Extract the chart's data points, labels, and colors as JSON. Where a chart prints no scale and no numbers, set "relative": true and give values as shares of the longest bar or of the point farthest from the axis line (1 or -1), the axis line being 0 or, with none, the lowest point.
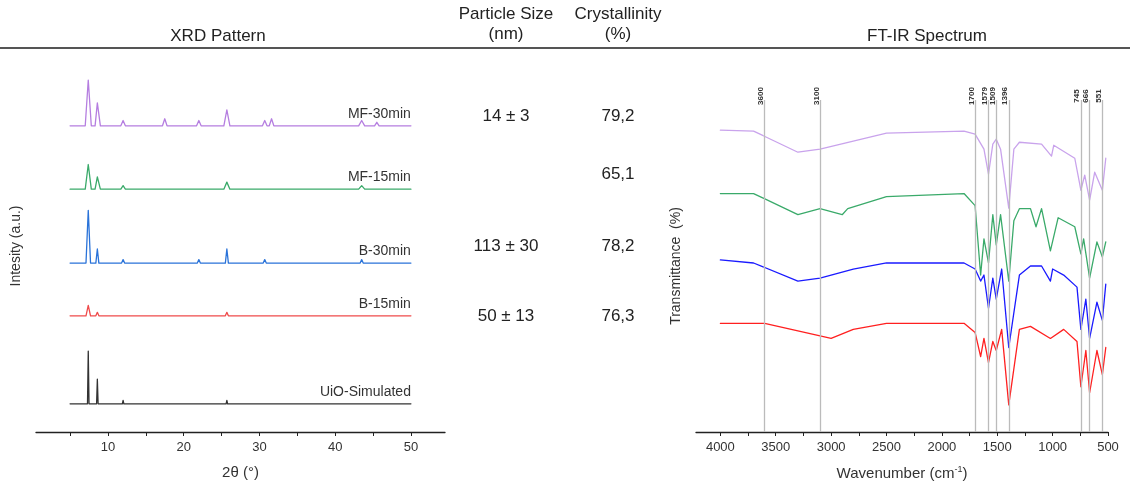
{
  "chart_data": [
    {
      "type": "line",
      "title": "XRD Pattern",
      "xlabel": "2θ (°)",
      "ylabel": "Intesity (a.u.)",
      "relative": true,
      "xlim": [
        0.5,
        54.5
      ],
      "xticks": [
        {
          "value": 5,
          "label": null
        },
        10,
        {
          "value": 15,
          "label": null
        },
        20,
        {
          "value": 25,
          "label": null
        },
        30,
        {
          "value": 35,
          "label": null
        },
        40,
        {
          "value": 45,
          "label": null
        },
        50
      ],
      "series": [
        {
          "name": "MF-30min",
          "color": "#b57ee0",
          "x": [
            5,
            7.0,
            7.4,
            7.8,
            8.3,
            8.6,
            9.0,
            11.7,
            12,
            12.3,
            17.2,
            17.5,
            17.8,
            21.7,
            22,
            22.3,
            25.3,
            25.7,
            26.1,
            30.4,
            30.7,
            31.0,
            31.3,
            31.6,
            31.9,
            43.1,
            43.5,
            43.9,
            45.2,
            45.5,
            45.8,
            50
          ],
          "values": [
            0.87,
            0.87,
            1.0,
            0.87,
            0.87,
            0.935,
            0.87,
            0.87,
            0.885,
            0.87,
            0.87,
            0.89,
            0.87,
            0.87,
            0.885,
            0.87,
            0.87,
            0.915,
            0.87,
            0.87,
            0.885,
            0.87,
            0.87,
            0.89,
            0.87,
            0.87,
            0.885,
            0.87,
            0.87,
            0.88,
            0.87,
            0.87
          ]
        },
        {
          "name": "MF-15min",
          "color": "#3aaa6a",
          "x": [
            5,
            7.0,
            7.4,
            7.8,
            8.3,
            8.6,
            9.0,
            11.7,
            12,
            12.3,
            25.3,
            25.7,
            26.1,
            43.1,
            43.5,
            43.9,
            50
          ],
          "values": [
            0.69,
            0.69,
            0.76,
            0.69,
            0.69,
            0.725,
            0.69,
            0.69,
            0.7,
            0.69,
            0.69,
            0.71,
            0.69,
            0.69,
            0.7,
            0.69,
            0.69
          ]
        },
        {
          "name": "B-30min",
          "color": "#2a73d9",
          "x": [
            5,
            7.1,
            7.4,
            7.7,
            8.4,
            8.6,
            8.8,
            11.8,
            12,
            12.2,
            21.8,
            22,
            22.2,
            25.5,
            25.7,
            25.9,
            30.5,
            30.7,
            30.9,
            43.3,
            43.5,
            43.7,
            50
          ],
          "values": [
            0.48,
            0.48,
            0.63,
            0.48,
            0.48,
            0.52,
            0.48,
            0.48,
            0.49,
            0.48,
            0.48,
            0.49,
            0.48,
            0.48,
            0.52,
            0.48,
            0.48,
            0.49,
            0.48,
            0.48,
            0.49,
            0.48,
            0.48
          ]
        },
        {
          "name": "B-15min",
          "color": "#ef4b4b",
          "x": [
            5,
            7.1,
            7.4,
            7.7,
            8.4,
            8.6,
            8.8,
            25.5,
            25.7,
            25.9,
            50
          ],
          "values": [
            0.33,
            0.33,
            0.36,
            0.33,
            0.33,
            0.34,
            0.33,
            0.33,
            0.34,
            0.33,
            0.33
          ]
        },
        {
          "name": "UiO-Simulated",
          "color": "#333333",
          "x": [
            5,
            7.3,
            7.4,
            7.5,
            8.5,
            8.6,
            8.7,
            11.9,
            12,
            12.1,
            25.6,
            25.7,
            25.8,
            50
          ],
          "values": [
            0.08,
            0.08,
            0.23,
            0.08,
            0.08,
            0.15,
            0.08,
            0.08,
            0.09,
            0.08,
            0.08,
            0.09,
            0.08,
            0.08
          ]
        }
      ]
    },
    {
      "type": "other",
      "categories": [
        "Particle Size\n(nm)",
        "Crystallinity\n(%)"
      ],
      "cell_labels": [
        [
          "14 ± 3",
          "79,2"
        ],
        [
          null,
          "65,1"
        ],
        [
          "113 ± 30",
          "78,2"
        ],
        [
          "50 ± 13",
          "76,3"
        ]
      ]
    },
    {
      "type": "line",
      "title": "FT-IR Spectrum",
      "xlabel": "Wavenumber (cm$^{-1}$)",
      "ylabel": "Transmittance  (%)",
      "relative": true,
      "xlim": [
        4220,
        500
      ],
      "xticks": [
        4000,
        {
          "value": 3750,
          "label": null
        },
        3500,
        {
          "value": 3250,
          "label": null
        },
        3000,
        {
          "value": 2750,
          "label": null
        },
        2500,
        {
          "value": 2250,
          "label": null
        },
        2000,
        {
          "value": 1750,
          "label": null
        },
        1500,
        {
          "value": 1250,
          "label": null
        },
        1000,
        {
          "value": 750,
          "label": null
        },
        500
      ],
      "ref_lines": [
        {
          "axis": "x",
          "value": 3600,
          "label": "3600",
          "color": "#bbbbbb"
        },
        {
          "axis": "x",
          "value": 3100,
          "label": "3100",
          "color": "#bbbbbb"
        },
        {
          "axis": "x",
          "value": 1700,
          "label": "1700",
          "color": "#bbbbbb"
        },
        {
          "axis": "x",
          "value": 1579,
          "label": "1579",
          "color": "#bbbbbb"
        },
        {
          "axis": "x",
          "value": 1509,
          "label": "1509",
          "color": "#bbbbbb"
        },
        {
          "axis": "x",
          "value": 1396,
          "label": "1396",
          "color": "#bbbbbb"
        },
        {
          "axis": "x",
          "value": 745,
          "label": "745",
          "color": "#bbbbbb"
        },
        {
          "axis": "x",
          "value": 666,
          "label": "666",
          "color": "#bbbbbb"
        },
        {
          "axis": "x",
          "value": 551,
          "label": "551",
          "color": "#bbbbbb"
        }
      ],
      "series": [
        {
          "color": "#c9a3ec",
          "x": [
            4000,
            3700,
            3300,
            3100,
            2800,
            2500,
            1800,
            1700,
            1620,
            1579,
            1540,
            1509,
            1470,
            1396,
            1350,
            1300,
            1100,
            1010,
            990,
            800,
            745,
            710,
            666,
            620,
            551,
            520
          ],
          "values": [
            1.0,
            0.997,
            0.927,
            0.937,
            0.964,
            0.99,
            0.997,
            0.987,
            0.937,
            0.854,
            0.954,
            0.97,
            0.937,
            0.742,
            0.937,
            0.96,
            0.954,
            0.914,
            0.95,
            0.907,
            0.801,
            0.851,
            0.768,
            0.861,
            0.801,
            0.907
          ]
        },
        {
          "color": "#3aaa6a",
          "x": [
            4000,
            3700,
            3300,
            3100,
            2900,
            2850,
            2500,
            1800,
            1700,
            1650,
            1620,
            1579,
            1540,
            1509,
            1470,
            1396,
            1350,
            1300,
            1200,
            1150,
            1100,
            1020,
            950,
            800,
            745,
            720,
            666,
            600,
            551,
            520
          ],
          "values": [
            0.79,
            0.79,
            0.72,
            0.74,
            0.72,
            0.74,
            0.78,
            0.79,
            0.75,
            0.52,
            0.64,
            0.56,
            0.72,
            0.62,
            0.72,
            0.5,
            0.7,
            0.74,
            0.74,
            0.68,
            0.74,
            0.6,
            0.71,
            0.68,
            0.59,
            0.64,
            0.51,
            0.63,
            0.58,
            0.63
          ]
        },
        {
          "color": "#1a1aff",
          "x": [
            4000,
            3700,
            3300,
            3100,
            2800,
            2500,
            1800,
            1700,
            1650,
            1620,
            1579,
            1540,
            1509,
            1460,
            1396,
            1300,
            1200,
            1100,
            1020,
            1000,
            900,
            780,
            745,
            700,
            666,
            600,
            551,
            520
          ],
          "values": [
            0.57,
            0.56,
            0.5,
            0.51,
            0.54,
            0.56,
            0.56,
            0.54,
            0.5,
            0.52,
            0.41,
            0.51,
            0.44,
            0.54,
            0.28,
            0.52,
            0.55,
            0.55,
            0.5,
            0.54,
            0.52,
            0.48,
            0.34,
            0.44,
            0.31,
            0.43,
            0.37,
            0.49
          ]
        },
        {
          "color": "#ff2020",
          "x": [
            4000,
            3600,
            3000,
            2800,
            2500,
            1800,
            1700,
            1650,
            1620,
            1579,
            1540,
            1509,
            1460,
            1396,
            1300,
            1200,
            1020,
            900,
            780,
            745,
            700,
            666,
            600,
            551,
            520
          ],
          "values": [
            0.36,
            0.36,
            0.31,
            0.34,
            0.36,
            0.36,
            0.33,
            0.25,
            0.31,
            0.23,
            0.3,
            0.27,
            0.34,
            0.09,
            0.34,
            0.35,
            0.31,
            0.34,
            0.3,
            0.15,
            0.27,
            0.13,
            0.27,
            0.19,
            0.28
          ]
        }
      ]
    }
  ]
}
